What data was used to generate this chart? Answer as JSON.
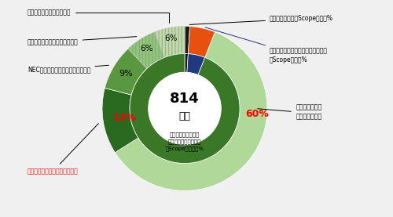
{
  "bg_color": "#f0f0f0",
  "center_text_line1": "814",
  "center_text_line2": "万ｔ",
  "outer_sizes": [
    1,
    5,
    60,
    13,
    9,
    6,
    6
  ],
  "outer_colors": [
    "#1a1a1a",
    "#e85010",
    "#b0d898",
    "#2a6a20",
    "#5a9840",
    "#8ec878",
    "#c0dca8"
  ],
  "inner_sizes": [
    1,
    5,
    94
  ],
  "inner_colors": [
    "#1a1a1a",
    "#203880",
    "#3a7828"
  ],
  "scope1_pct": 1,
  "scope2_pct": 5,
  "scope3_pct": 94,
  "sold_use_pct": 60,
  "purchased_pct": 13,
  "nec_pct": 9,
  "processing_pct": 6,
  "travel_pct": 6,
  "label_scope1": "自社の直接排出（Scope１）１%",
  "label_scope2": "電力利用などによる自社の間接排出\n（Scope２）５%",
  "label_sold_use": "販売した製品の\n使用による排出",
  "label_purchased": "購入した製品・サービスの排出",
  "label_nec": "NECが出資している会社からの排出",
  "label_processing": "販売した製品の加工による排出",
  "label_travel": "出張や物流等その他の排出",
  "label_scope3_inner": "サプライチェーンの\n上流・下流からの排出\n（Scope３）９４%"
}
